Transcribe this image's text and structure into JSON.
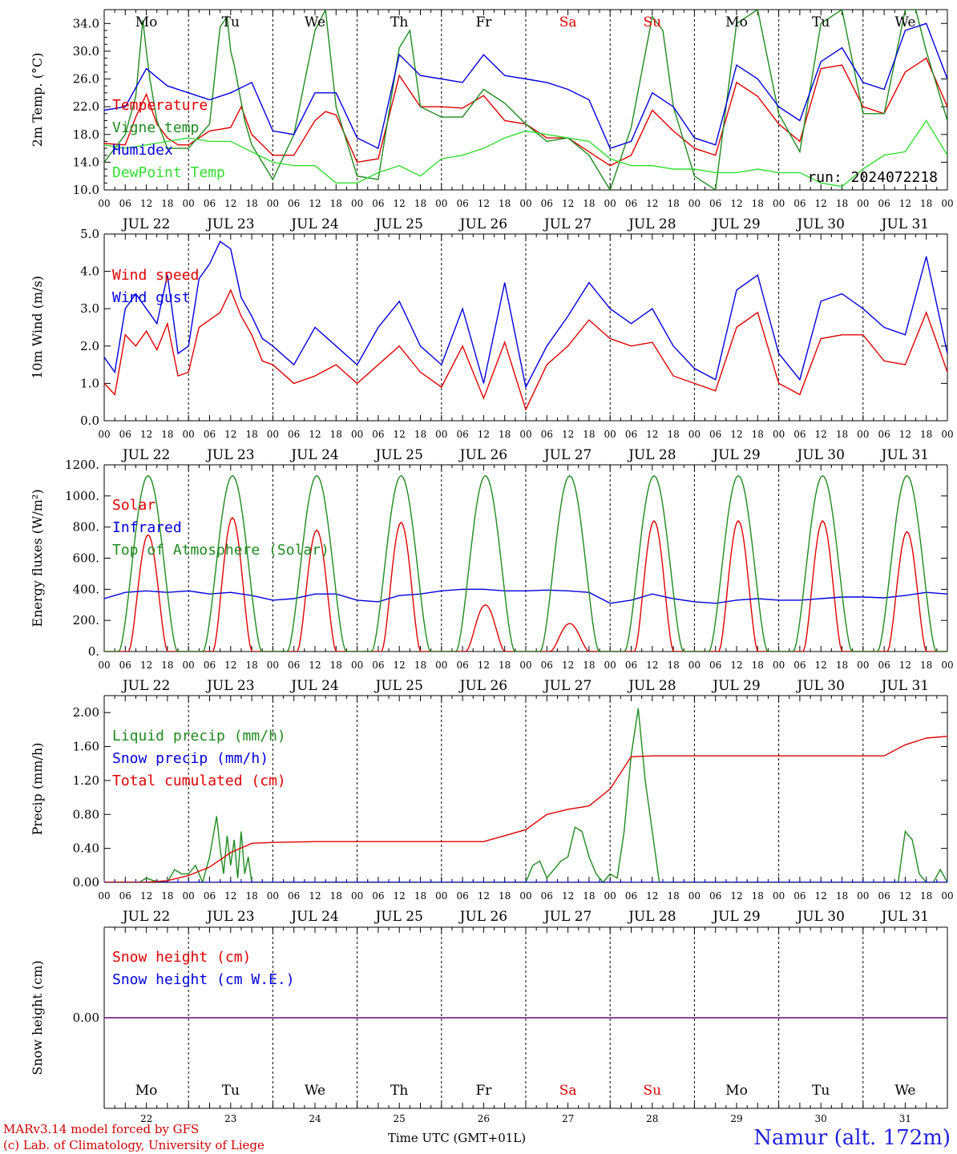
{
  "location": "Namur (alt. 172m)",
  "credits": [
    "MARv3.14 model forced by GFS",
    "(c) Lab. of Climatology, University of Liege"
  ],
  "xlabel": "Time UTC (GMT+01L)",
  "run_label": "run: 2024072218",
  "weekdays": [
    "Mo",
    "Tu",
    "We",
    "Th",
    "Fr",
    "Sa",
    "Su",
    "Mo",
    "Tu",
    "We"
  ],
  "weekend_days": [
    5,
    6
  ],
  "days": [
    "JUL 22",
    "JUL 23",
    "JUL 24",
    "JUL 25",
    "JUL 26",
    "JUL 27",
    "JUL 28",
    "JUL 29",
    "JUL 30",
    "JUL 31"
  ],
  "day_numbers": [
    "22",
    "23",
    "24",
    "25",
    "26",
    "27",
    "28",
    "29",
    "30",
    "31"
  ],
  "hour_labels": [
    "00",
    "06",
    "12",
    "18"
  ],
  "colors": {
    "red": "#e00000",
    "green": "#1f8a1f",
    "blue": "#0000e0",
    "lime": "#33dd33",
    "purple": "#7a2c8a",
    "title": "#2222dd"
  },
  "chart_data": [
    {
      "type": "line",
      "ylabel": "2m Temp. (°C)",
      "ylim": [
        10,
        36
      ],
      "yticks": [
        10,
        14,
        18,
        22,
        26,
        30,
        34
      ],
      "ytick_labels": [
        "10.0",
        "14.0",
        "18.0",
        "22.0",
        "26.0",
        "30.0",
        "34.0"
      ],
      "series": [
        {
          "name": "Temperature",
          "color": "red",
          "x": [
            0,
            6,
            9,
            12,
            15,
            18,
            21,
            24,
            30,
            36,
            39,
            42,
            48,
            54,
            60,
            63,
            66,
            72,
            78,
            84,
            90,
            96,
            102,
            108,
            114,
            120,
            126,
            132,
            138,
            144,
            150,
            156,
            162,
            168,
            174,
            180,
            186,
            192,
            198,
            204,
            210,
            216,
            222,
            228,
            234,
            240
          ],
          "y": [
            16.7,
            16.5,
            20.5,
            23.8,
            19.5,
            17.5,
            16.5,
            16.5,
            18.5,
            19.0,
            22.0,
            18.0,
            15.0,
            15.0,
            20.0,
            21.3,
            20.8,
            14.0,
            14.5,
            26.5,
            22.0,
            22.0,
            21.8,
            23.6,
            20.0,
            19.5,
            17.5,
            17.5,
            15.5,
            13.5,
            15.0,
            21.5,
            18.5,
            16.0,
            15.0,
            25.5,
            23.5,
            19.5,
            17.0,
            27.5,
            28.0,
            22.0,
            21.0,
            27.0,
            29.0,
            22.0
          ]
        },
        {
          "name": "Vigne temp",
          "color": "green",
          "x": [
            0,
            6,
            9,
            11,
            12,
            13,
            15,
            18,
            24,
            30,
            33,
            35,
            36,
            37,
            40,
            42,
            48,
            54,
            60,
            63,
            66,
            72,
            78,
            84,
            87,
            90,
            96,
            102,
            108,
            114,
            120,
            126,
            132,
            138,
            144,
            150,
            156,
            159,
            162,
            168,
            174,
            180,
            186,
            192,
            198,
            204,
            210,
            216,
            222,
            228,
            231,
            234,
            240
          ],
          "y": [
            14.0,
            18.0,
            23.5,
            34.5,
            30.0,
            26.0,
            20.0,
            16.0,
            16.0,
            19.5,
            33.5,
            35.0,
            30.0,
            28.0,
            20.0,
            16.5,
            11.5,
            18.0,
            33.0,
            36.0,
            22.0,
            12.0,
            11.5,
            30.5,
            33.0,
            22.0,
            20.5,
            20.5,
            24.5,
            22.5,
            19.5,
            17.0,
            17.5,
            15.0,
            10.0,
            19.0,
            35.0,
            33.0,
            22.0,
            12.0,
            10.0,
            34.0,
            36.0,
            21.0,
            15.5,
            34.0,
            36.0,
            21.0,
            21.0,
            36.0,
            36.0,
            30.0,
            20.0
          ]
        },
        {
          "name": "Humidex",
          "color": "blue",
          "x": [
            0,
            6,
            12,
            18,
            24,
            30,
            36,
            42,
            48,
            54,
            60,
            66,
            72,
            78,
            84,
            90,
            96,
            102,
            108,
            114,
            120,
            126,
            132,
            138,
            144,
            150,
            156,
            162,
            168,
            174,
            180,
            186,
            192,
            198,
            204,
            210,
            216,
            222,
            228,
            234,
            240
          ],
          "y": [
            21.5,
            22.0,
            27.5,
            25.0,
            24.0,
            23.0,
            24.0,
            25.5,
            18.5,
            18.0,
            24.0,
            24.0,
            17.5,
            16.0,
            29.5,
            26.5,
            26.0,
            25.5,
            29.5,
            26.5,
            26.0,
            25.5,
            24.5,
            23.0,
            16.0,
            17.0,
            24.0,
            22.0,
            17.5,
            16.5,
            28.0,
            26.0,
            22.0,
            20.0,
            28.5,
            30.5,
            25.5,
            24.5,
            33.0,
            34.0,
            26.0
          ]
        },
        {
          "name": "DewPoint Temp",
          "color": "lime",
          "x": [
            0,
            6,
            12,
            18,
            24,
            30,
            36,
            42,
            48,
            54,
            60,
            66,
            72,
            78,
            84,
            90,
            96,
            102,
            108,
            114,
            120,
            126,
            132,
            138,
            144,
            150,
            156,
            162,
            168,
            174,
            180,
            186,
            192,
            198,
            204,
            210,
            216,
            222,
            228,
            234,
            240
          ],
          "y": [
            16.5,
            16.0,
            16.5,
            17.0,
            17.5,
            17.0,
            17.0,
            15.5,
            14.0,
            13.5,
            13.5,
            11.0,
            11.0,
            12.5,
            13.5,
            12.0,
            14.5,
            15.0,
            16.0,
            17.5,
            18.5,
            18.0,
            17.5,
            17.0,
            14.5,
            13.5,
            13.5,
            13.0,
            13.0,
            12.5,
            12.5,
            13.0,
            12.5,
            12.5,
            11.0,
            10.5,
            13.0,
            15.0,
            15.5,
            20.0,
            15.0
          ]
        }
      ]
    },
    {
      "type": "line",
      "ylabel": "10m Wind (m/s)",
      "ylim": [
        0,
        5
      ],
      "yticks": [
        0,
        1,
        2,
        3,
        4,
        5
      ],
      "ytick_labels": [
        "0.0",
        "1.0",
        "2.0",
        "3.0",
        "4.0",
        "5.0"
      ],
      "series": [
        {
          "name": "Wind speed",
          "color": "red",
          "x": [
            0,
            3,
            6,
            9,
            12,
            15,
            18,
            21,
            24,
            27,
            30,
            33,
            36,
            39,
            42,
            45,
            48,
            54,
            60,
            66,
            72,
            78,
            84,
            90,
            96,
            102,
            108,
            114,
            120,
            126,
            132,
            138,
            144,
            150,
            156,
            162,
            168,
            174,
            180,
            186,
            192,
            198,
            204,
            210,
            216,
            222,
            228,
            234,
            240
          ],
          "y": [
            1.0,
            0.7,
            2.3,
            2.0,
            2.4,
            1.9,
            2.6,
            1.2,
            1.3,
            2.5,
            2.7,
            2.9,
            3.5,
            2.8,
            2.3,
            1.6,
            1.5,
            1.0,
            1.2,
            1.5,
            1.0,
            1.5,
            2.0,
            1.3,
            0.9,
            2.0,
            0.6,
            2.1,
            0.3,
            1.5,
            2.0,
            2.7,
            2.2,
            2.0,
            2.1,
            1.2,
            1.0,
            0.8,
            2.5,
            2.9,
            1.0,
            0.7,
            2.2,
            2.3,
            2.3,
            1.6,
            1.5,
            2.9,
            1.3
          ]
        },
        {
          "name": "Wind gust",
          "color": "blue",
          "x": [
            0,
            3,
            6,
            9,
            12,
            15,
            18,
            21,
            24,
            27,
            30,
            33,
            36,
            39,
            42,
            45,
            48,
            54,
            60,
            66,
            72,
            78,
            84,
            90,
            96,
            102,
            108,
            114,
            120,
            126,
            132,
            138,
            144,
            150,
            156,
            162,
            168,
            174,
            180,
            186,
            192,
            198,
            204,
            210,
            216,
            222,
            228,
            234,
            240
          ],
          "y": [
            1.7,
            1.3,
            3.0,
            3.4,
            3.0,
            2.6,
            3.9,
            1.8,
            2.0,
            3.8,
            4.2,
            4.8,
            4.6,
            3.3,
            2.8,
            2.2,
            2.0,
            1.5,
            2.5,
            2.0,
            1.5,
            2.5,
            3.2,
            2.0,
            1.5,
            3.0,
            1.0,
            3.7,
            0.9,
            2.0,
            2.8,
            3.7,
            3.0,
            2.6,
            3.0,
            2.0,
            1.4,
            1.1,
            3.5,
            3.9,
            1.8,
            1.1,
            3.2,
            3.4,
            3.0,
            2.5,
            2.3,
            4.4,
            1.8
          ]
        }
      ]
    },
    {
      "type": "line",
      "ylabel": "Energy fluxes (W/m²)",
      "ylim": [
        0,
        1200
      ],
      "yticks": [
        0,
        200,
        400,
        600,
        800,
        1000,
        1200
      ],
      "ytick_labels": [
        "0.",
        "200.",
        "400.",
        "600.",
        "800.",
        "1000.",
        "1200."
      ],
      "solar_peaks": [
        750,
        860,
        780,
        830,
        300,
        180,
        840,
        840,
        840,
        770
      ],
      "toa_peak": 1130,
      "series": [
        {
          "name": "Solar",
          "color": "red"
        },
        {
          "name": "Infrared",
          "color": "blue",
          "x": [
            0,
            6,
            12,
            18,
            24,
            30,
            36,
            42,
            48,
            54,
            60,
            66,
            72,
            78,
            84,
            90,
            96,
            102,
            108,
            114,
            120,
            126,
            132,
            138,
            144,
            150,
            156,
            162,
            168,
            174,
            180,
            186,
            192,
            198,
            204,
            210,
            216,
            222,
            228,
            234,
            240
          ],
          "y": [
            340,
            380,
            390,
            380,
            390,
            370,
            380,
            360,
            330,
            340,
            370,
            370,
            330,
            320,
            360,
            370,
            390,
            400,
            400,
            390,
            390,
            395,
            390,
            380,
            310,
            330,
            370,
            340,
            320,
            310,
            330,
            340,
            330,
            330,
            340,
            350,
            350,
            345,
            360,
            380,
            370
          ]
        },
        {
          "name": "Top of Atmosphere (Solar)",
          "color": "green"
        }
      ]
    },
    {
      "type": "line",
      "ylabel": "Precip (mm/h)",
      "ylim": [
        0,
        2.2
      ],
      "yticks": [
        0,
        0.4,
        0.8,
        1.2,
        1.6,
        2.0
      ],
      "ytick_labels": [
        "0.00",
        "0.40",
        "0.80",
        "1.20",
        "1.60",
        "2.00"
      ],
      "series": [
        {
          "name": "Liquid precip (mm/h)",
          "color": "green",
          "x": [
            0,
            10,
            12,
            14,
            18,
            20,
            22,
            24,
            26,
            28,
            30,
            32,
            33,
            34,
            35,
            36,
            37,
            38,
            39,
            40,
            41,
            42,
            44,
            48,
            120,
            122,
            124,
            126,
            128,
            130,
            132,
            134,
            136,
            138,
            140,
            142,
            144,
            146,
            148,
            150,
            152,
            154,
            156,
            158,
            160,
            162,
            226,
            228,
            230,
            232,
            234,
            236,
            238,
            240
          ],
          "y": [
            0,
            0,
            0.05,
            0.02,
            0,
            0.15,
            0.1,
            0.1,
            0.2,
            0,
            0.3,
            0.78,
            0.4,
            0.1,
            0.55,
            0.2,
            0.5,
            0.05,
            0.6,
            0.1,
            0.3,
            0,
            0,
            0,
            0,
            0.2,
            0.25,
            0.05,
            0.15,
            0.25,
            0.3,
            0.65,
            0.6,
            0.3,
            0.1,
            0,
            0.1,
            0.05,
            0.6,
            1.5,
            2.05,
            1.2,
            0.6,
            0,
            0,
            0,
            0,
            0.6,
            0.5,
            0.1,
            0,
            0,
            0.15,
            0
          ],
          "point_ticks": true
        },
        {
          "name": "Snow precip (mm/h)",
          "color": "blue",
          "x": [
            0,
            240
          ],
          "y": [
            0,
            0
          ]
        },
        {
          "name": "Total cumulated (cm)",
          "color": "red",
          "x": [
            0,
            12,
            18,
            24,
            30,
            36,
            42,
            48,
            60,
            72,
            96,
            108,
            114,
            120,
            126,
            132,
            138,
            144,
            150,
            156,
            162,
            168,
            180,
            192,
            204,
            216,
            222,
            228,
            234,
            240
          ],
          "y": [
            0,
            0,
            0.02,
            0.08,
            0.18,
            0.35,
            0.46,
            0.47,
            0.48,
            0.48,
            0.48,
            0.48,
            0.55,
            0.62,
            0.8,
            0.86,
            0.9,
            1.1,
            1.48,
            1.49,
            1.49,
            1.49,
            1.49,
            1.49,
            1.49,
            1.49,
            1.49,
            1.62,
            1.7,
            1.72
          ]
        }
      ]
    },
    {
      "type": "line",
      "ylabel": "Snow height (cm)",
      "ylim": [
        -1,
        1
      ],
      "yticks": [
        0
      ],
      "ytick_labels": [
        "0.00"
      ],
      "series": [
        {
          "name": "Snow height (cm)",
          "color": "red",
          "x": [
            0,
            240
          ],
          "y": [
            0,
            0
          ]
        },
        {
          "name": "Snow height (cm W.E.)",
          "color": "blue",
          "x": [
            0,
            240
          ],
          "y": [
            0,
            0
          ]
        }
      ]
    }
  ]
}
